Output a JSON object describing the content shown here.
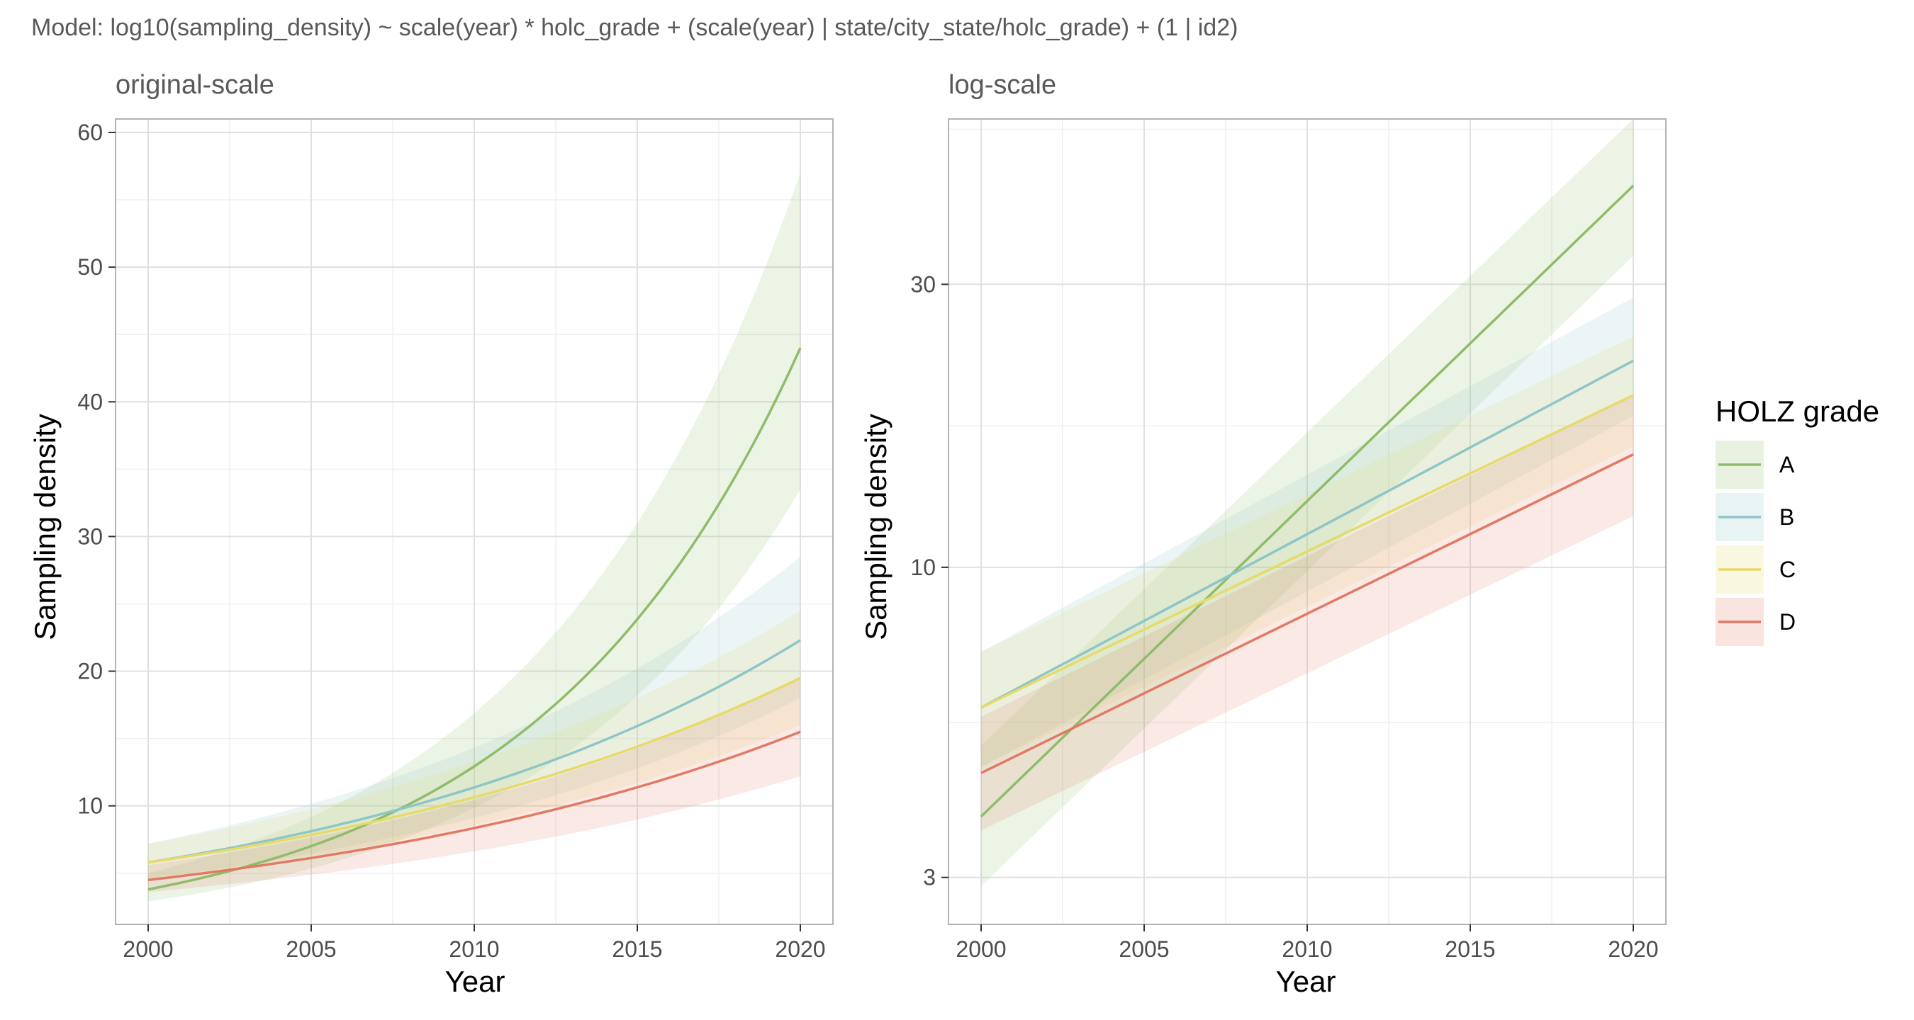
{
  "caption": "Model: log10(sampling_density) ~ scale(year) * holc_grade + (scale(year) | state/city_state/holc_grade) + (1 | id2)",
  "legend": {
    "title": "HOLZ grade",
    "items": [
      {
        "label": "A",
        "color": "#8fbc6a"
      },
      {
        "label": "B",
        "color": "#8ec5c9"
      },
      {
        "label": "C",
        "color": "#e8d96a"
      },
      {
        "label": "D",
        "color": "#e07a64"
      }
    ]
  },
  "chart_data": [
    {
      "type": "line",
      "title": "original-scale",
      "xlabel": "Year",
      "ylabel": "Sampling density",
      "xlim": [
        1999,
        2021
      ],
      "ylim": [
        1.2,
        61
      ],
      "scale": "linear",
      "x_ticks": [
        2000,
        2005,
        2010,
        2015,
        2020
      ],
      "y_ticks": [
        10,
        20,
        30,
        40,
        50,
        60
      ],
      "x_tick_labels": [
        "2000",
        "2005",
        "2010",
        "2015",
        "2020"
      ],
      "y_tick_labels": [
        "10",
        "20",
        "30",
        "40",
        "50",
        "60"
      ],
      "grid": true,
      "legend_position": "right",
      "series": [
        {
          "name": "A",
          "color": "#8fbc6a",
          "x": [
            2000,
            2020
          ],
          "y": [
            3.8,
            44.0
          ],
          "lower": [
            2.9,
            33.5
          ],
          "upper": [
            5.0,
            57.0
          ]
        },
        {
          "name": "B",
          "color": "#8ec5c9",
          "x": [
            2000,
            2020
          ],
          "y": [
            5.8,
            22.3
          ],
          "lower": [
            4.6,
            18.0
          ],
          "upper": [
            7.2,
            28.5
          ]
        },
        {
          "name": "C",
          "color": "#e8d96a",
          "x": [
            2000,
            2020
          ],
          "y": [
            5.8,
            19.5
          ],
          "lower": [
            4.6,
            16.0
          ],
          "upper": [
            7.2,
            24.5
          ]
        },
        {
          "name": "D",
          "color": "#e07a64",
          "x": [
            2000,
            2020
          ],
          "y": [
            4.5,
            15.5
          ],
          "lower": [
            3.6,
            12.2
          ],
          "upper": [
            5.6,
            19.5
          ]
        }
      ]
    },
    {
      "type": "line",
      "title": "log-scale",
      "xlabel": "Year",
      "ylabel": "Sampling density",
      "xlim": [
        1999,
        2021
      ],
      "ylim": [
        2.5,
        57
      ],
      "scale": "log10",
      "x_ticks": [
        2000,
        2005,
        2010,
        2015,
        2020
      ],
      "y_ticks": [
        3,
        10,
        30
      ],
      "y_minor_ticks": [
        5.4772,
        17.3205,
        54.7723
      ],
      "x_tick_labels": [
        "2000",
        "2005",
        "2010",
        "2015",
        "2020"
      ],
      "y_tick_labels": [
        "3",
        "10",
        "30"
      ],
      "grid": true,
      "legend_position": "right",
      "series": [
        {
          "name": "A",
          "color": "#8fbc6a",
          "x": [
            2000,
            2020
          ],
          "y": [
            3.8,
            44.0
          ],
          "lower": [
            2.9,
            33.5
          ],
          "upper": [
            5.0,
            57.0
          ]
        },
        {
          "name": "B",
          "color": "#8ec5c9",
          "x": [
            2000,
            2020
          ],
          "y": [
            5.8,
            22.3
          ],
          "lower": [
            4.6,
            18.0
          ],
          "upper": [
            7.2,
            28.5
          ]
        },
        {
          "name": "C",
          "color": "#e8d96a",
          "x": [
            2000,
            2020
          ],
          "y": [
            5.8,
            19.5
          ],
          "lower": [
            4.6,
            16.0
          ],
          "upper": [
            7.2,
            24.5
          ]
        },
        {
          "name": "D",
          "color": "#e07a64",
          "x": [
            2000,
            2020
          ],
          "y": [
            4.5,
            15.5
          ],
          "lower": [
            3.6,
            12.2
          ],
          "upper": [
            5.6,
            19.5
          ]
        }
      ]
    }
  ]
}
